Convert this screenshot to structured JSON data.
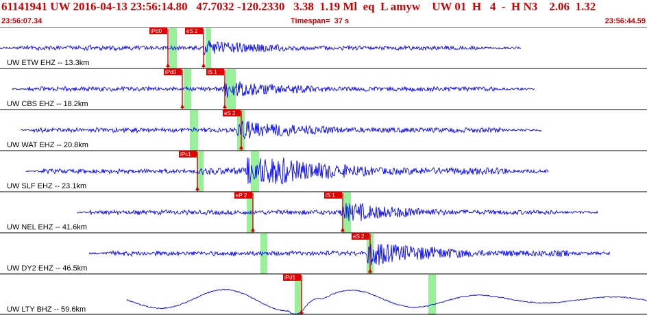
{
  "header": {
    "summary": "61141941 UW 2016-04-13 23:56:14.80   47.7032 -120.2330   3.38  1.19 Ml  eq  L amyw    UW 01  H   4  -  H N3    2.06  1.32",
    "start_time": "23:56:07.34",
    "timespan": "Timespan=  37 s",
    "end_time": "23:56:44.59"
  },
  "colors": {
    "header_text": "#d00000",
    "trace": "#0000ff",
    "pick_line": "#d00000",
    "pick_box": "#e00000",
    "window": "#98f098",
    "frame": "#000000"
  },
  "traces": [
    {
      "label": "UW ETW EHZ -- 13.3km",
      "kind": "hf",
      "picks": [
        "iPd0",
        "eS 2"
      ],
      "amp": 0.5
    },
    {
      "label": "UW CBS EHZ -- 18.2km",
      "kind": "hf",
      "picks": [
        "iPd0",
        "iS 1"
      ],
      "amp": 0.55
    },
    {
      "label": "UW WAT EHZ -- 20.8km",
      "kind": "hf",
      "picks": [
        "eS 2"
      ],
      "amp": 0.6
    },
    {
      "label": "UW SLF EHZ -- 23.1km",
      "kind": "hf",
      "picks": [
        "iPc1"
      ],
      "amp": 0.85
    },
    {
      "label": "UW NEL EHZ -- 41.6km",
      "kind": "hf",
      "picks": [
        "eP 2",
        "iS 1"
      ],
      "amp": 0.55
    },
    {
      "label": "UW DY2 EHZ -- 46.5km",
      "kind": "hf",
      "picks": [
        "eS 2"
      ],
      "amp": 0.75
    },
    {
      "label": "UW LTY BHZ -- 59.6km",
      "kind": "lp",
      "picks": [
        "iPd1"
      ],
      "amp": 0.5
    }
  ]
}
